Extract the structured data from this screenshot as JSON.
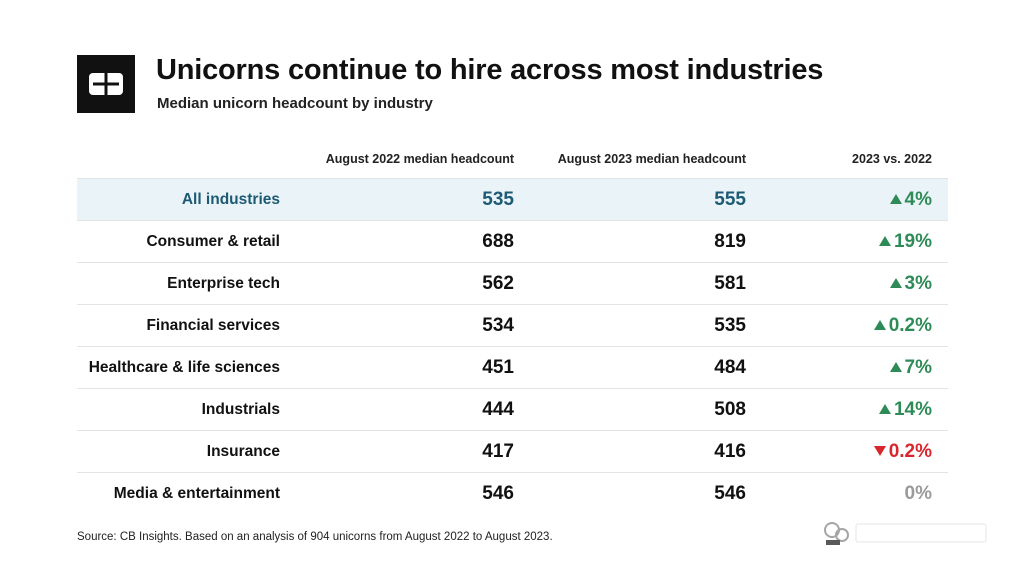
{
  "header": {
    "title": "Unicorns continue to hire across most industries",
    "subtitle": "Median unicorn headcount by industry"
  },
  "footer": {
    "source": "Source: CB Insights. Based on an analysis of 904 unicorns from August 2022 to August 2023."
  },
  "colors": {
    "highlight_bg": "#eaf4f8",
    "highlight_text": "#1d5a73",
    "up": "#2e8b57",
    "down": "#d9262c",
    "flat": "#9a9a9a"
  },
  "chart_data": {
    "type": "table",
    "columns": [
      "",
      "August 2022 median headcount",
      "August 2023 median headcount",
      "2023 vs. 2022"
    ],
    "rows": [
      {
        "industry": "All industries",
        "aug_2022": "535",
        "aug_2023": "555",
        "change": "4%",
        "direction": "up",
        "highlight": true
      },
      {
        "industry": "Consumer & retail",
        "aug_2022": "688",
        "aug_2023": "819",
        "change": "19%",
        "direction": "up",
        "highlight": false
      },
      {
        "industry": "Enterprise tech",
        "aug_2022": "562",
        "aug_2023": "581",
        "change": "3%",
        "direction": "up",
        "highlight": false
      },
      {
        "industry": "Financial services",
        "aug_2022": "534",
        "aug_2023": "535",
        "change": "0.2%",
        "direction": "up",
        "highlight": false
      },
      {
        "industry": "Healthcare & life sciences",
        "aug_2022": "451",
        "aug_2023": "484",
        "change": "7%",
        "direction": "up",
        "highlight": false
      },
      {
        "industry": "Industrials",
        "aug_2022": "444",
        "aug_2023": "508",
        "change": "14%",
        "direction": "up",
        "highlight": false
      },
      {
        "industry": "Insurance",
        "aug_2022": "417",
        "aug_2023": "416",
        "change": "0.2%",
        "direction": "down",
        "highlight": false
      },
      {
        "industry": "Media & entertainment",
        "aug_2022": "546",
        "aug_2023": "546",
        "change": "0%",
        "direction": "flat",
        "highlight": false
      }
    ]
  }
}
